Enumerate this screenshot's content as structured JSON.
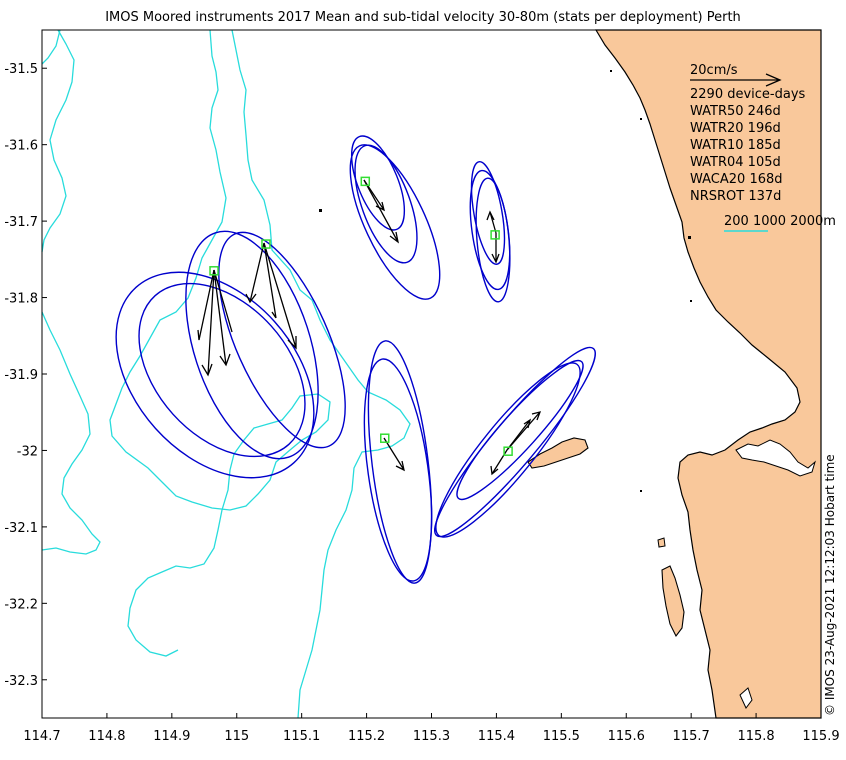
{
  "title": "IMOS Moored instruments 2017 Mean and sub-tidal velocity 30-80m (stats per deployment) Perth",
  "side_credit": "© IMOS 23-Aug-2021 12:12:03 Hobart time",
  "colors": {
    "land": "#f9c89b",
    "coast": "#000000",
    "isobath": "#28dcdc",
    "ellipse": "#0000cc",
    "station": "#33dd33",
    "arrow": "#000000"
  },
  "axes": {
    "lon_range": [
      114.7,
      115.9
    ],
    "lat_range": [
      -32.35,
      -31.45
    ],
    "x_ticks": [
      "114.7",
      "114.8",
      "114.9",
      "115",
      "115.1",
      "115.2",
      "115.3",
      "115.4",
      "115.5",
      "115.6",
      "115.7",
      "115.8",
      "115.9"
    ],
    "y_ticks": [
      "-31.5",
      "-31.6",
      "-31.7",
      "-31.8",
      "-31.9",
      "-32",
      "-32.1",
      "-32.2",
      "-32.3"
    ]
  },
  "legend": {
    "scale_label": "20cm/s",
    "device_days": "2290 device-days",
    "stations": [
      {
        "label": "WATR50 246d"
      },
      {
        "label": "WATR20 196d"
      },
      {
        "label": "WATR10 185d"
      },
      {
        "label": "WATR04 105d"
      },
      {
        "label": "WACA20 168d"
      },
      {
        "label": "NRSROT 137d"
      }
    ],
    "isobath_label": "200 1000 2000m"
  },
  "chart_data": {
    "type": "map",
    "stations": [
      {
        "lon": 114.965,
        "lat": -31.765
      },
      {
        "lon": 115.045,
        "lat": -31.73
      },
      {
        "lon": 115.198,
        "lat": -31.648
      },
      {
        "lon": 115.398,
        "lat": -31.718
      },
      {
        "lon": 115.228,
        "lat": -31.984
      },
      {
        "lon": 115.418,
        "lat": -32.001
      }
    ]
  }
}
